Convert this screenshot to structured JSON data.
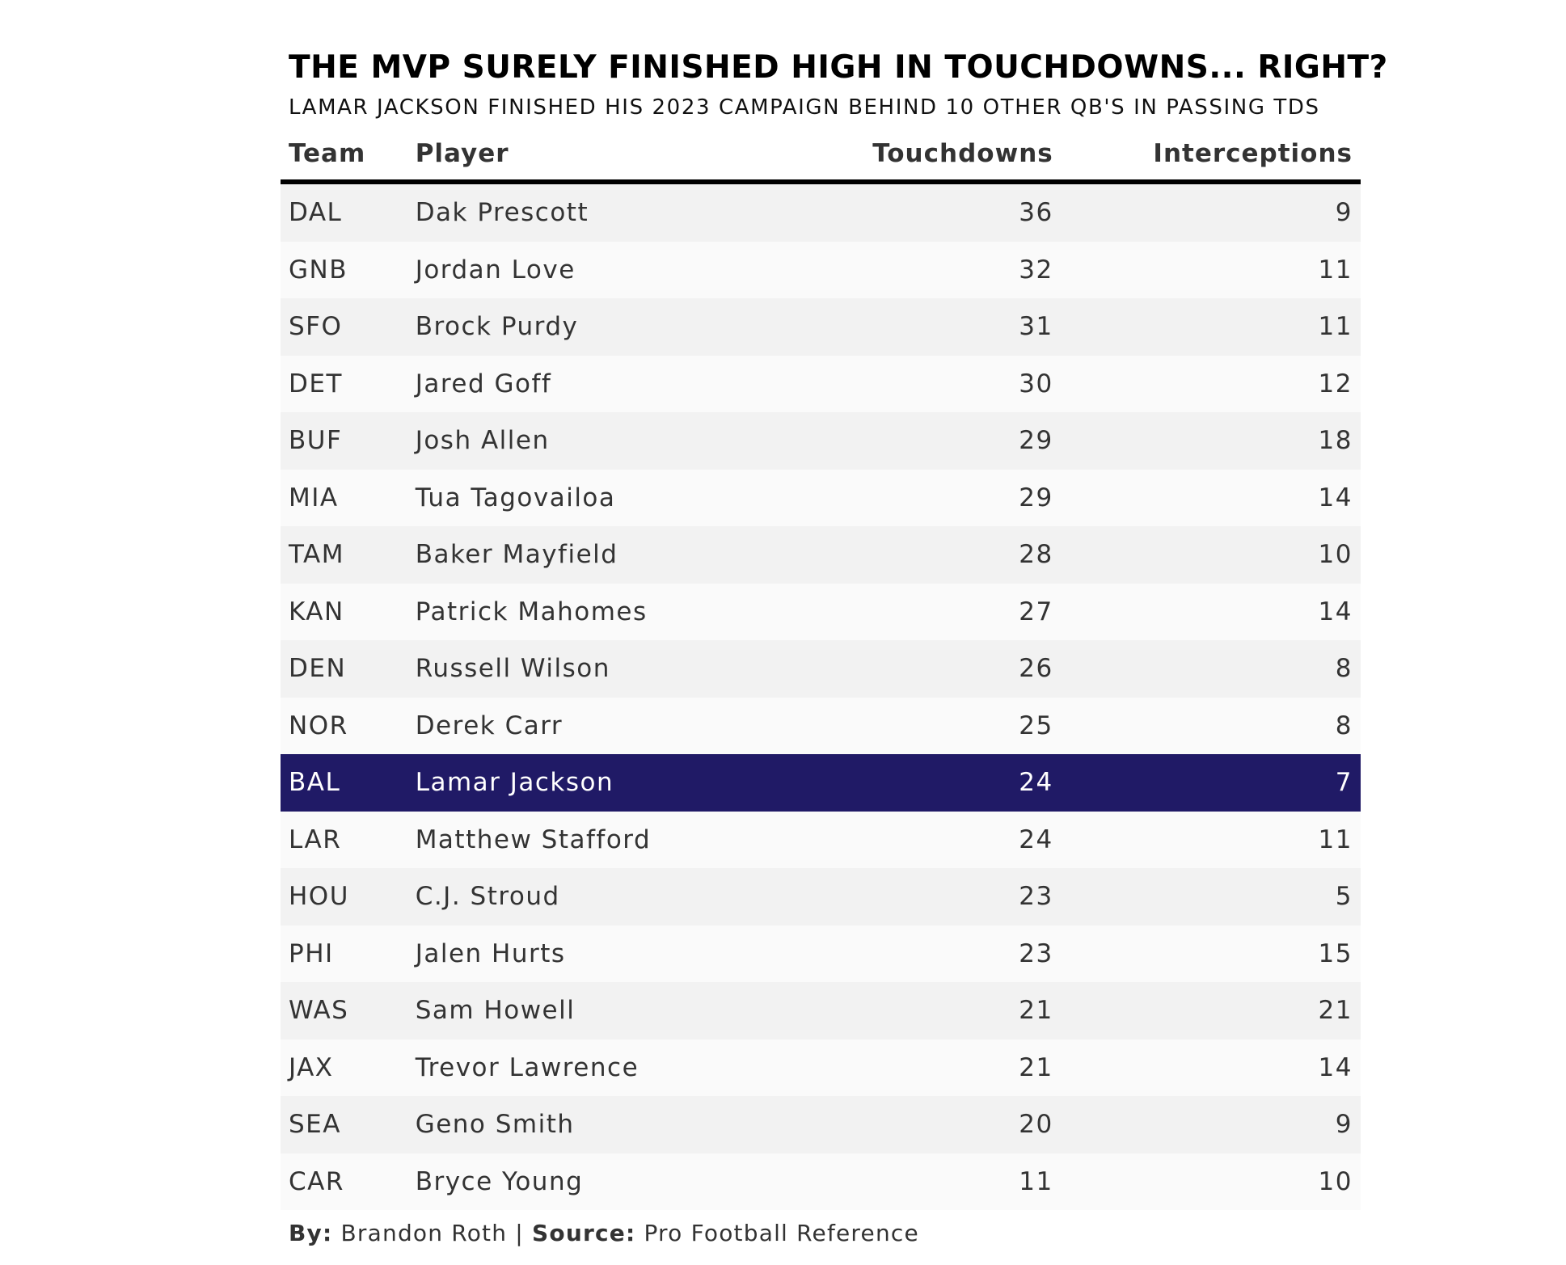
{
  "chart_data": {
    "type": "table",
    "title": "THE MVP SURELY FINISHED HIGH IN TOUCHDOWNS... RIGHT?",
    "subtitle": "LAMAR JACKSON FINISHED HIS 2023 CAMPAIGN BEHIND 10 OTHER QB'S IN PASSING TDS",
    "columns": [
      "Team",
      "Player",
      "Touchdowns",
      "Interceptions"
    ],
    "rows": [
      {
        "team": "DAL",
        "player": "Dak Prescott",
        "touchdowns": "36",
        "interceptions": "9"
      },
      {
        "team": "GNB",
        "player": "Jordan Love",
        "touchdowns": "32",
        "interceptions": "11"
      },
      {
        "team": "SFO",
        "player": "Brock Purdy",
        "touchdowns": "31",
        "interceptions": "11"
      },
      {
        "team": "DET",
        "player": "Jared Goff",
        "touchdowns": "30",
        "interceptions": "12"
      },
      {
        "team": "BUF",
        "player": "Josh Allen",
        "touchdowns": "29",
        "interceptions": "18"
      },
      {
        "team": "MIA",
        "player": "Tua Tagovailoa",
        "touchdowns": "29",
        "interceptions": "14"
      },
      {
        "team": "TAM",
        "player": "Baker Mayfield",
        "touchdowns": "28",
        "interceptions": "10"
      },
      {
        "team": "KAN",
        "player": "Patrick Mahomes",
        "touchdowns": "27",
        "interceptions": "14"
      },
      {
        "team": "DEN",
        "player": "Russell Wilson",
        "touchdowns": "26",
        "interceptions": "8"
      },
      {
        "team": "NOR",
        "player": "Derek Carr",
        "touchdowns": "25",
        "interceptions": "8"
      },
      {
        "team": "BAL",
        "player": "Lamar Jackson",
        "touchdowns": "24",
        "interceptions": "7",
        "highlight": true
      },
      {
        "team": "LAR",
        "player": "Matthew Stafford",
        "touchdowns": "24",
        "interceptions": "11"
      },
      {
        "team": "HOU",
        "player": "C.J. Stroud",
        "touchdowns": "23",
        "interceptions": "5"
      },
      {
        "team": "PHI",
        "player": "Jalen Hurts",
        "touchdowns": "23",
        "interceptions": "15"
      },
      {
        "team": "WAS",
        "player": "Sam Howell",
        "touchdowns": "21",
        "interceptions": "21"
      },
      {
        "team": "JAX",
        "player": "Trevor Lawrence",
        "touchdowns": "21",
        "interceptions": "14"
      },
      {
        "team": "SEA",
        "player": "Geno Smith",
        "touchdowns": "20",
        "interceptions": "9"
      },
      {
        "team": "CAR",
        "player": "Bryce Young",
        "touchdowns": "11",
        "interceptions": "10"
      }
    ],
    "highlight_color": "#201a66"
  },
  "footer": {
    "by_label": "By:",
    "by_value": "Brandon Roth",
    "separator": "|",
    "source_label": "Source:",
    "source_value": "Pro Football Reference"
  }
}
